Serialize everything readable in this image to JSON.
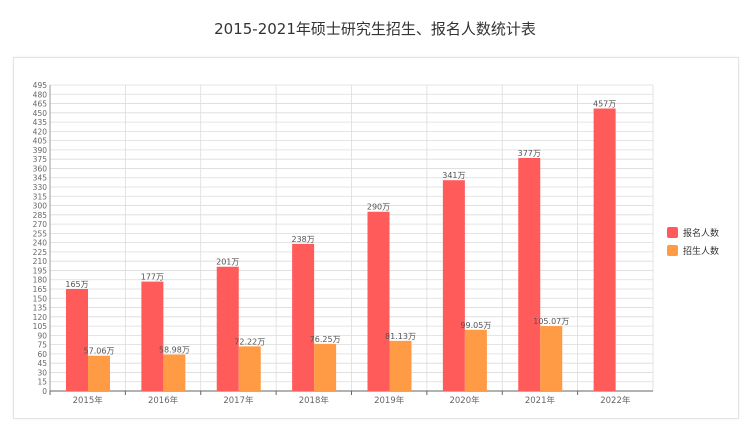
{
  "chart_data": {
    "type": "bar",
    "title": "2015-2021年硕士研究生招生、报名人数统计表",
    "categories": [
      "2015年",
      "2016年",
      "2017年",
      "2018年",
      "2019年",
      "2020年",
      "2021年",
      "2022年"
    ],
    "series": [
      {
        "name": "报名人数",
        "color": "#ff5b5b",
        "values": [
          165,
          177,
          201,
          238,
          290,
          341,
          377,
          457
        ],
        "labels": [
          "165万",
          "177万",
          "201万",
          "238万",
          "290万",
          "341万",
          "377万",
          "457万"
        ]
      },
      {
        "name": "招生人数",
        "color": "#ff9a45",
        "values": [
          57.06,
          58.98,
          72.22,
          76.25,
          81.13,
          99.05,
          105.07,
          null
        ],
        "labels": [
          "57.06万",
          "58.98万",
          "72.22万",
          "76.25万",
          "81.13万",
          "99.05万",
          "105.07万",
          ""
        ]
      }
    ],
    "ylim": [
      0,
      495
    ],
    "ytick_step": 15,
    "grid": true,
    "legend_position": "right"
  }
}
